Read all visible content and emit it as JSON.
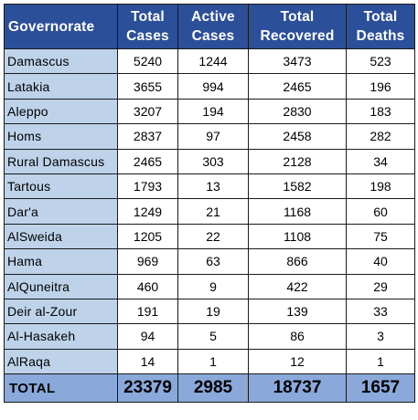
{
  "table": {
    "headers": [
      {
        "lines": [
          "Governorate"
        ]
      },
      {
        "lines": [
          "Total",
          "Cases"
        ]
      },
      {
        "lines": [
          "Active",
          "Cases"
        ]
      },
      {
        "lines": [
          "Total",
          "Recovered"
        ]
      },
      {
        "lines": [
          "Total",
          "Deaths"
        ]
      }
    ],
    "rows": [
      {
        "governorate": "Damascus",
        "total_cases": "5240",
        "active_cases": "1244",
        "total_recovered": "3473",
        "total_deaths": "523"
      },
      {
        "governorate": "Latakia",
        "total_cases": "3655",
        "active_cases": "994",
        "total_recovered": "2465",
        "total_deaths": "196"
      },
      {
        "governorate": "Aleppo",
        "total_cases": "3207",
        "active_cases": "194",
        "total_recovered": "2830",
        "total_deaths": "183"
      },
      {
        "governorate": "Homs",
        "total_cases": "2837",
        "active_cases": "97",
        "total_recovered": "2458",
        "total_deaths": "282"
      },
      {
        "governorate": "Rural Damascus",
        "total_cases": "2465",
        "active_cases": "303",
        "total_recovered": "2128",
        "total_deaths": "34"
      },
      {
        "governorate": "Tartous",
        "total_cases": "1793",
        "active_cases": "13",
        "total_recovered": "1582",
        "total_deaths": "198"
      },
      {
        "governorate": "Dar'a",
        "total_cases": "1249",
        "active_cases": "21",
        "total_recovered": "1168",
        "total_deaths": "60"
      },
      {
        "governorate": "AlSweida",
        "total_cases": "1205",
        "active_cases": "22",
        "total_recovered": "1108",
        "total_deaths": "75"
      },
      {
        "governorate": "Hama",
        "total_cases": "969",
        "active_cases": "63",
        "total_recovered": "866",
        "total_deaths": "40"
      },
      {
        "governorate": "AlQuneitra",
        "total_cases": "460",
        "active_cases": "9",
        "total_recovered": "422",
        "total_deaths": "29"
      },
      {
        "governorate": "Deir al-Zour",
        "total_cases": "191",
        "active_cases": "19",
        "total_recovered": "139",
        "total_deaths": "33"
      },
      {
        "governorate": "Al-Hasakeh",
        "total_cases": "94",
        "active_cases": "5",
        "total_recovered": "86",
        "total_deaths": "3"
      },
      {
        "governorate": "AlRaqa",
        "total_cases": "14",
        "active_cases": "1",
        "total_recovered": "12",
        "total_deaths": "1"
      }
    ],
    "total": {
      "label": "TOTAL",
      "total_cases": "23379",
      "active_cases": "2985",
      "total_recovered": "18737",
      "total_deaths": "1657"
    }
  },
  "colors": {
    "header_bg": "#2c4f99",
    "header_text": "#ffffff",
    "name_cell_bg": "#bed3ea",
    "total_row_bg": "#8aa8da",
    "border": "#1a1a1a"
  }
}
